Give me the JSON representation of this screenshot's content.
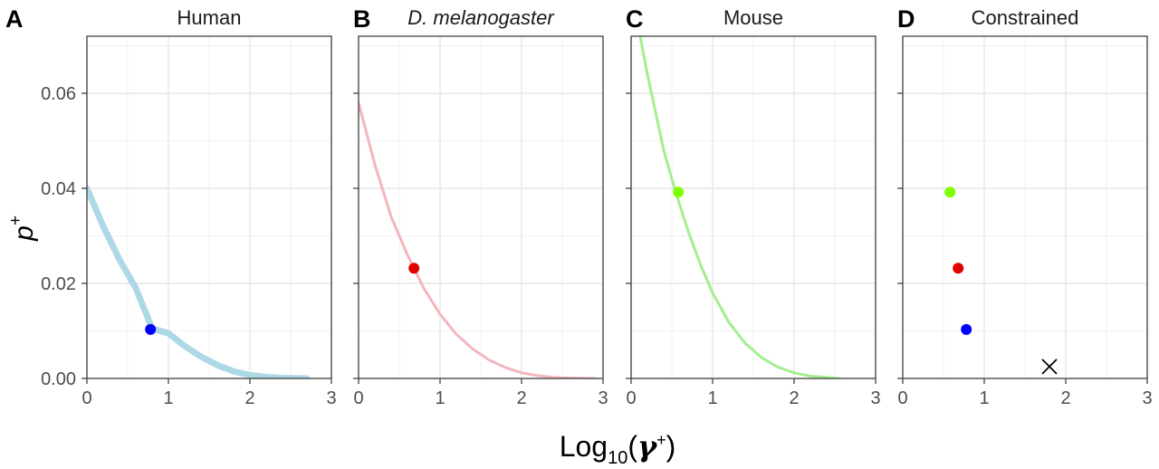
{
  "figure": {
    "xlabel": "Log10(γ+)",
    "xlabel_main": "Log",
    "xlabel_sub": "10",
    "xlabel_sym": "γ",
    "xlabel_sup": "+",
    "ylabel": "p+",
    "ylabel_main": "p",
    "ylabel_sup": "+"
  },
  "chart_data": [
    {
      "type": "line",
      "letter": "A",
      "title": "Human",
      "title_italic": false,
      "color": "#add8e6",
      "xlim": [
        0,
        3
      ],
      "ylim": [
        0,
        0.072
      ],
      "x_ticks": [
        "0",
        "1",
        "2",
        "3"
      ],
      "y_ticks": [
        "0.00",
        "0.02",
        "0.04",
        "0.06"
      ],
      "curve": {
        "x": [
          0,
          0.2,
          0.4,
          0.6,
          0.8,
          1.0,
          1.2,
          1.4,
          1.6,
          1.8,
          2.0,
          2.2,
          2.4,
          2.7
        ],
        "y": [
          0.04,
          0.032,
          0.025,
          0.019,
          0.0105,
          0.0095,
          0.0068,
          0.0046,
          0.0028,
          0.0015,
          0.0007,
          0.0003,
          0.0001,
          0.0
        ]
      },
      "points": [
        {
          "x": 0.78,
          "y": 0.0103,
          "color": "#0000ff",
          "marker": "circle"
        }
      ]
    },
    {
      "type": "line",
      "letter": "B",
      "title": "D. melanogaster",
      "title_italic": true,
      "color": "#f4b6bd",
      "xlim": [
        0,
        3
      ],
      "ylim": [
        0,
        0.072
      ],
      "x_ticks": [
        "0",
        "1",
        "2",
        "3"
      ],
      "y_ticks": [
        "0.00",
        "0.02",
        "0.04",
        "0.06"
      ],
      "curve": {
        "x": [
          0,
          0.2,
          0.4,
          0.6,
          0.8,
          1.0,
          1.2,
          1.4,
          1.6,
          1.8,
          2.0,
          2.2,
          2.4,
          2.6,
          2.9
        ],
        "y": [
          0.058,
          0.045,
          0.034,
          0.026,
          0.019,
          0.0135,
          0.0093,
          0.0062,
          0.0039,
          0.0023,
          0.0012,
          0.0006,
          0.0002,
          0.0001,
          0.0
        ]
      },
      "points": [
        {
          "x": 0.68,
          "y": 0.0232,
          "color": "#e00000",
          "marker": "circle"
        }
      ]
    },
    {
      "type": "line",
      "letter": "C",
      "title": "Mouse",
      "title_italic": false,
      "color": "#a3ee8f",
      "xlim": [
        0,
        3
      ],
      "ylim": [
        0,
        0.072
      ],
      "x_ticks": [
        "0",
        "1",
        "2",
        "3"
      ],
      "y_ticks": [
        "0.00",
        "0.02",
        "0.04",
        "0.06"
      ],
      "curve": {
        "x": [
          0.1,
          0.2,
          0.3,
          0.4,
          0.55,
          0.7,
          0.85,
          1.0,
          1.2,
          1.4,
          1.6,
          1.8,
          2.0,
          2.2,
          2.55
        ],
        "y": [
          0.073,
          0.064,
          0.056,
          0.048,
          0.039,
          0.031,
          0.024,
          0.018,
          0.0118,
          0.0074,
          0.0044,
          0.0024,
          0.0012,
          0.0005,
          0.0
        ]
      },
      "points": [
        {
          "x": 0.58,
          "y": 0.0392,
          "color": "#7fff00",
          "marker": "circle"
        }
      ]
    },
    {
      "type": "scatter",
      "letter": "D",
      "title": "Constrained",
      "title_italic": false,
      "xlim": [
        0,
        3
      ],
      "ylim": [
        0,
        0.072
      ],
      "x_ticks": [
        "0",
        "1",
        "2",
        "3"
      ],
      "y_ticks": [
        "0.00",
        "0.02",
        "0.04",
        "0.06"
      ],
      "points": [
        {
          "x": 0.58,
          "y": 0.0392,
          "color": "#7fff00",
          "marker": "circle"
        },
        {
          "x": 0.68,
          "y": 0.0232,
          "color": "#e00000",
          "marker": "circle"
        },
        {
          "x": 0.78,
          "y": 0.0103,
          "color": "#0000ff",
          "marker": "circle"
        },
        {
          "x": 1.8,
          "y": 0.0025,
          "color": "#000000",
          "marker": "cross"
        }
      ]
    }
  ]
}
